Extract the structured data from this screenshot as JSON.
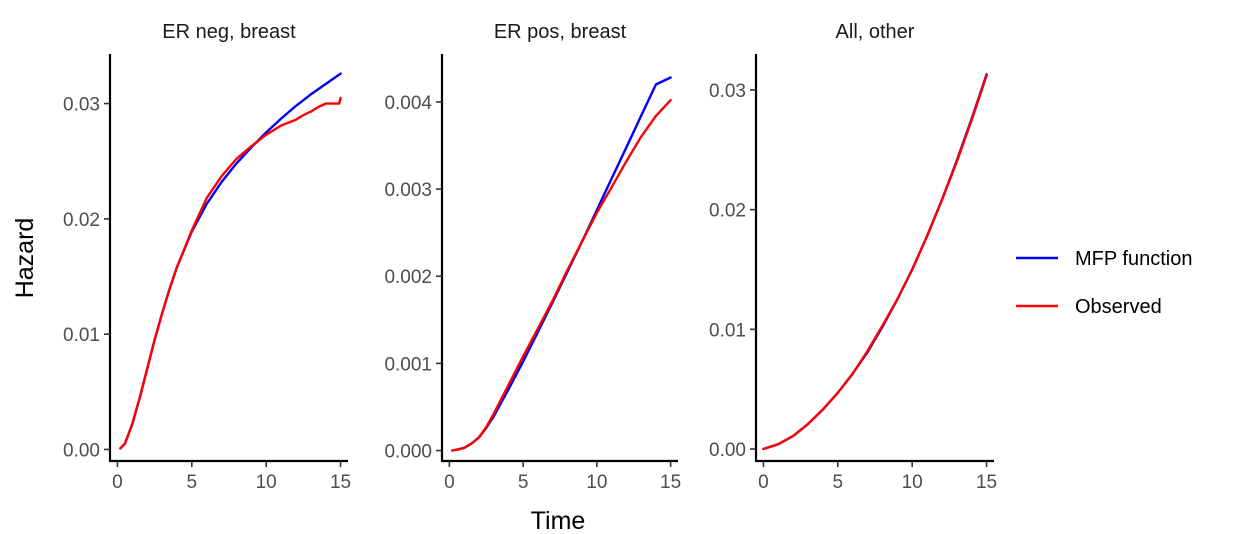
{
  "chart_data": {
    "type": "line",
    "xlabel": "Time",
    "ylabel": "Hazard",
    "legend": {
      "position": "right"
    },
    "grid": false,
    "series_legend": [
      {
        "name": "MFP function",
        "color": "#0000ff"
      },
      {
        "name": "Observed",
        "color": "#ff0000"
      }
    ],
    "panels": [
      {
        "title": "ER neg, breast",
        "xlim": [
          -0.5,
          15.5
        ],
        "ylim": [
          -0.001,
          0.0343
        ],
        "xticks": [
          0,
          5,
          10,
          15
        ],
        "xtick_labels": [
          "0",
          "5",
          "10",
          "15"
        ],
        "yticks": [
          0.0,
          0.01,
          0.02,
          0.03
        ],
        "ytick_labels": [
          "0.00",
          "0.01",
          "0.02",
          "0.03"
        ],
        "series": [
          {
            "name": "MFP function",
            "color": "#0000ff",
            "x": [
              0.2,
              0.5,
              1,
              1.5,
              2,
              2.5,
              3,
              3.5,
              4,
              5,
              6,
              7,
              8,
              9,
              10,
              11,
              12,
              13,
              14,
              15
            ],
            "y": [
              0.0001,
              0.0005,
              0.0022,
              0.0045,
              0.007,
              0.0095,
              0.0118,
              0.0139,
              0.0158,
              0.0189,
              0.0213,
              0.0232,
              0.0248,
              0.0262,
              0.0275,
              0.0287,
              0.0298,
              0.0308,
              0.0317,
              0.0326
            ]
          },
          {
            "name": "Observed",
            "color": "#ff0000",
            "x": [
              0.2,
              0.5,
              1,
              1.5,
              2,
              2.5,
              3,
              3.5,
              4,
              5,
              6,
              7,
              8,
              9,
              10,
              11,
              12,
              12.5,
              13,
              13.5,
              14,
              14.5,
              14.9,
              15
            ],
            "y": [
              0.0001,
              0.0005,
              0.0022,
              0.0045,
              0.007,
              0.0095,
              0.0118,
              0.0139,
              0.0158,
              0.019,
              0.0218,
              0.0237,
              0.0252,
              0.0263,
              0.0273,
              0.0281,
              0.0286,
              0.029,
              0.0293,
              0.0297,
              0.03,
              0.03,
              0.03,
              0.0305
            ]
          }
        ]
      },
      {
        "title": "ER pos, breast",
        "xlim": [
          -0.5,
          15.5
        ],
        "ylim": [
          -0.00012,
          0.00455
        ],
        "xticks": [
          0,
          5,
          10,
          15
        ],
        "xtick_labels": [
          "0",
          "5",
          "10",
          "15"
        ],
        "yticks": [
          0.0,
          0.001,
          0.002,
          0.003,
          0.004
        ],
        "ytick_labels": [
          "0.000",
          "0.001",
          "0.002",
          "0.003",
          "0.004"
        ],
        "series": [
          {
            "name": "MFP function",
            "color": "#0000ff",
            "x": [
              0.2,
              0.5,
              1,
              1.5,
              2,
              2.5,
              3,
              4,
              5,
              6,
              7,
              8,
              9,
              10,
              11,
              12,
              13,
              14,
              15
            ],
            "y": [
              0.0,
              1e-05,
              3e-05,
              8e-05,
              0.00015,
              0.00026,
              0.00039,
              0.0007,
              0.00102,
              0.00136,
              0.0017,
              0.00205,
              0.0024,
              0.00276,
              0.00312,
              0.00348,
              0.00384,
              0.0042,
              0.00428
            ]
          },
          {
            "name": "Observed",
            "color": "#ff0000",
            "x": [
              0.2,
              0.5,
              1,
              1.5,
              2,
              2.5,
              3,
              4,
              5,
              6,
              7,
              8,
              9,
              10,
              11,
              12,
              13,
              14,
              15
            ],
            "y": [
              0.0,
              1e-05,
              3e-05,
              8e-05,
              0.00015,
              0.00027,
              0.00042,
              0.00075,
              0.00108,
              0.0014,
              0.00172,
              0.00207,
              0.0024,
              0.00273,
              0.00302,
              0.00332,
              0.0036,
              0.00384,
              0.00402
            ]
          }
        ]
      },
      {
        "title": "All, other",
        "xlim": [
          -0.5,
          15.5
        ],
        "ylim": [
          -0.001,
          0.033
        ],
        "xticks": [
          0,
          5,
          10,
          15
        ],
        "xtick_labels": [
          "0",
          "5",
          "10",
          "15"
        ],
        "yticks": [
          0.0,
          0.01,
          0.02,
          0.03
        ],
        "ytick_labels": [
          "0.00",
          "0.01",
          "0.02",
          "0.03"
        ],
        "series": [
          {
            "name": "MFP function",
            "color": "#0000ff",
            "x": [
              0,
              1,
              2,
              3,
              4,
              5,
              6,
              7,
              8,
              9,
              10,
              11,
              12,
              13,
              14,
              15
            ],
            "y": [
              0.0,
              0.0004,
              0.0011,
              0.0021,
              0.0033,
              0.0047,
              0.0063,
              0.0081,
              0.0102,
              0.0125,
              0.015,
              0.0178,
              0.0208,
              0.0241,
              0.0276,
              0.0313
            ]
          },
          {
            "name": "Observed",
            "color": "#ff0000",
            "x": [
              0,
              1,
              2,
              3,
              4,
              5,
              6,
              7,
              8,
              9,
              10,
              11,
              12,
              13,
              14,
              15
            ],
            "y": [
              0.0,
              0.0004,
              0.0011,
              0.0021,
              0.0033,
              0.0047,
              0.0063,
              0.0082,
              0.0103,
              0.0125,
              0.015,
              0.0178,
              0.0208,
              0.024,
              0.0275,
              0.0312
            ]
          }
        ]
      }
    ]
  }
}
